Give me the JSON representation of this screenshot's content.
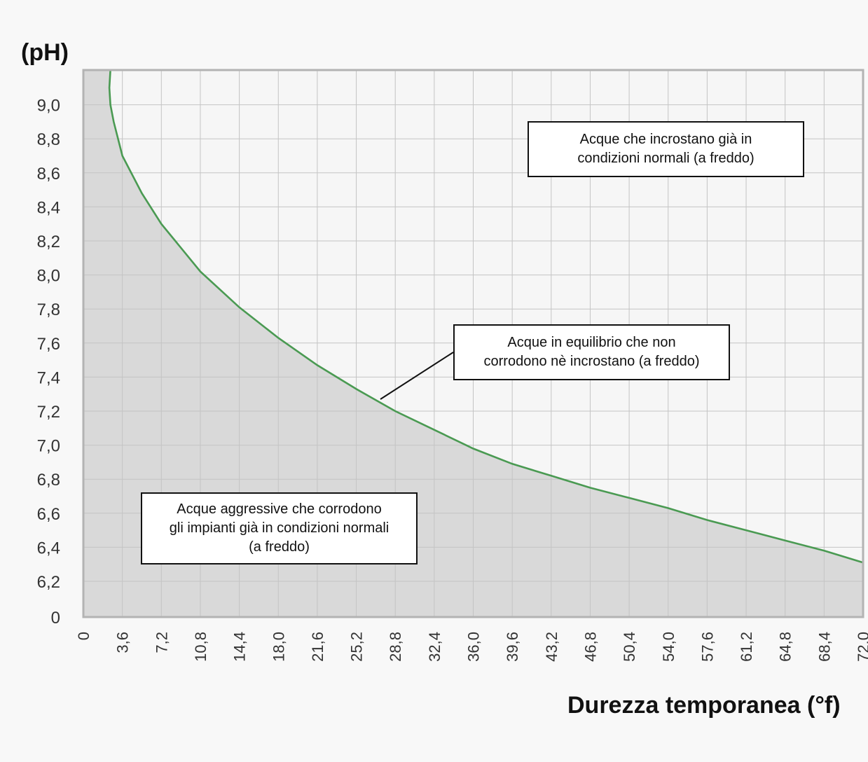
{
  "chart_data": {
    "type": "area",
    "ylabel": "(pH)",
    "xlabel": "Durezza temporanea (°f)",
    "y_tick_labels": [
      "0",
      "6,2",
      "6,4",
      "6,6",
      "6,8",
      "7,0",
      "7,2",
      "7,4",
      "7,6",
      "7,8",
      "8,0",
      "8,2",
      "8,4",
      "8,6",
      "8,8",
      "9,0"
    ],
    "x_tick_labels": [
      "0",
      "3,6",
      "7,2",
      "10,8",
      "14,4",
      "18,0",
      "21,6",
      "25,2",
      "28,8",
      "32,4",
      "36,0",
      "39,6",
      "43,2",
      "46,8",
      "50,4",
      "54,0",
      "57,6",
      "61,2",
      "64,8",
      "68,4",
      "72,0"
    ],
    "grid": true,
    "series": [
      {
        "x": [
          2.5,
          2.4,
          2.5,
          2.8,
          3.6,
          5.4,
          7.2,
          10.8,
          14.4,
          18.0,
          21.6,
          25.2,
          28.8,
          32.4,
          36.0,
          39.6,
          43.2,
          46.8,
          50.4,
          54.0,
          57.6,
          61.2,
          64.8,
          68.4,
          72.0
        ],
        "y": [
          9.2,
          9.1,
          9.0,
          8.9,
          8.7,
          8.48,
          8.3,
          8.02,
          7.81,
          7.63,
          7.47,
          7.33,
          7.2,
          7.09,
          6.98,
          6.89,
          6.82,
          6.75,
          6.69,
          6.63,
          6.56,
          6.5,
          6.44,
          6.38,
          6.31
        ],
        "color": "#4a9a52",
        "fill_below": "#d9d9d9"
      }
    ],
    "annotations": [
      {
        "lines": [
          "Acque che incrostano già in",
          "condizioni normali (a freddo)"
        ]
      },
      {
        "lines": [
          "Acque in equilibrio che non",
          "corrodono nè incrostano (a freddo)"
        ]
      },
      {
        "lines": [
          "Acque aggressive che corrodono",
          "gli impianti già in condizioni normali",
          "(a freddo)"
        ]
      }
    ]
  }
}
